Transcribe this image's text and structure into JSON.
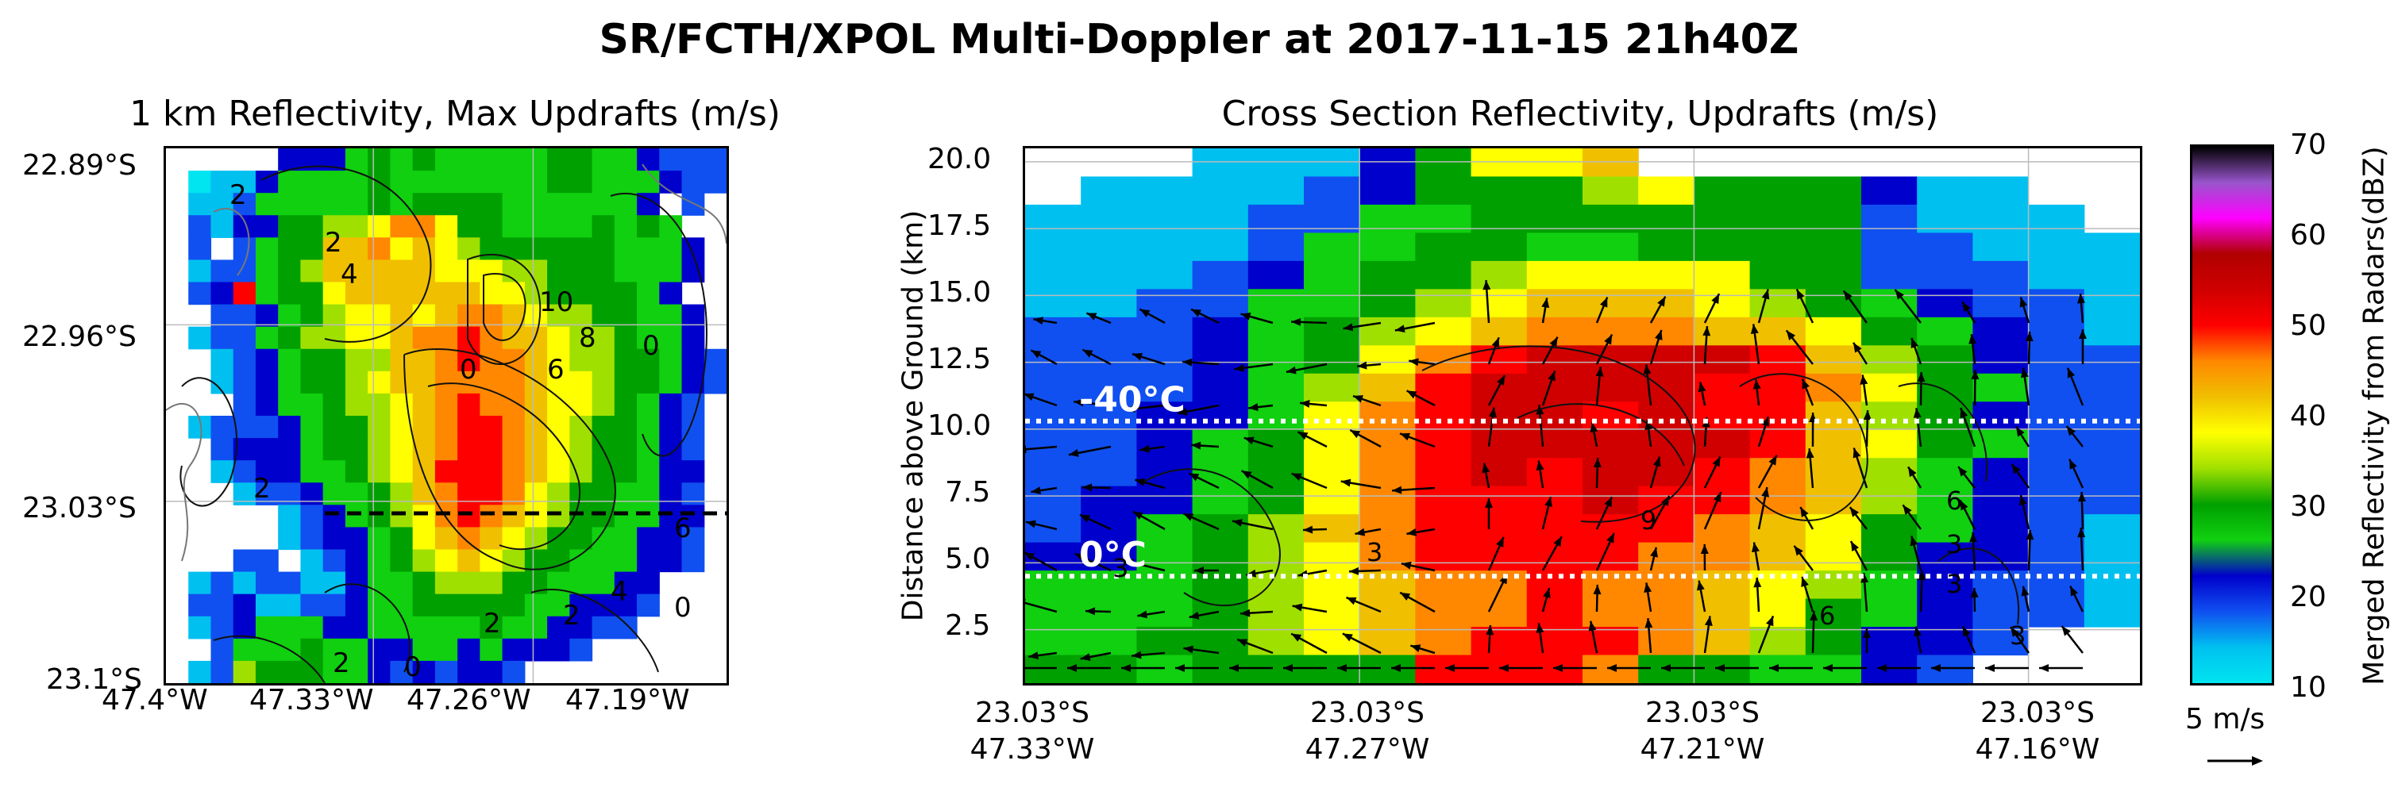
{
  "figure": {
    "suptitle": "SR/FCTH/XPOL Multi-Doppler at 2017-11-15 21h40Z"
  },
  "left_panel": {
    "title": "1 km Reflectivity, Max Updrafts (m/s)",
    "ytick_labels": [
      "22.89°S",
      "22.96°S",
      "23.03°S",
      "23.1°S"
    ],
    "xtick_labels": [
      "47.4°W",
      "47.33°W",
      "47.26°W",
      "47.19°W"
    ],
    "contour_labels": [
      "2",
      "4",
      "2",
      "0",
      "10",
      "6",
      "8",
      "0",
      "2",
      "6",
      "4",
      "2",
      "0",
      "2",
      "0",
      "2"
    ]
  },
  "right_panel": {
    "title": "Cross Section Reflectivity, Updrafts (m/s)",
    "ylabel": "Distance above Ground (km)",
    "ytick_labels": [
      "20.0",
      "17.5",
      "15.0",
      "12.5",
      "10.0",
      "7.5",
      "5.0",
      "2.5"
    ],
    "xtick_labels": [
      {
        "lat": "23.03°S",
        "lon": "47.33°W"
      },
      {
        "lat": "23.03°S",
        "lon": "47.27°W"
      },
      {
        "lat": "23.03°S",
        "lon": "47.21°W"
      },
      {
        "lat": "23.03°S",
        "lon": "47.16°W"
      }
    ],
    "isotherms": [
      {
        "label": "-40°C",
        "height_km": 10.3
      },
      {
        "label": "0°C",
        "height_km": 4.5
      }
    ],
    "contour_labels": [
      "3",
      "6",
      "3",
      "9",
      "3",
      "6",
      "3",
      "3"
    ]
  },
  "colorbar": {
    "label": "Merged Reflectivity from Radars(dBZ)",
    "tick_labels": [
      "70",
      "60",
      "50",
      "40",
      "30",
      "20",
      "10"
    ],
    "stops": [
      "#00e5f0",
      "#00c0f0",
      "#1050f0",
      "#0000cc",
      "#10d010",
      "#00a000",
      "#a0e000",
      "#ffff00",
      "#f0c000",
      "#ff8800",
      "#ff0000",
      "#d00000",
      "#b00000",
      "#ff00ff",
      "#9955cc",
      "#000000"
    ]
  },
  "quiver_key": {
    "label": "5 m/s"
  },
  "chart_data": [
    {
      "type": "heatmap",
      "title": "1 km Reflectivity, Max Updrafts (m/s)",
      "xlabel": "",
      "ylabel": "",
      "x_range": [
        "47.40°W",
        "47.15°W"
      ],
      "y_range": [
        "23.10°S",
        "22.87°S"
      ],
      "units": "dBZ",
      "vmin": 10,
      "vmax": 70,
      "grid_rows": 24,
      "grid_cols": 25,
      "values": [
        [
          0,
          0,
          0,
          0,
          0,
          22,
          20,
          22,
          25,
          30,
          25,
          28,
          26,
          25,
          24,
          24,
          25,
          28,
          28,
          24,
          24,
          20,
          18,
          18,
          18
        ],
        [
          0,
          10,
          14,
          12,
          20,
          24,
          24,
          25,
          25,
          30,
          26,
          26,
          26,
          27,
          26,
          24,
          26,
          28,
          28,
          26,
          26,
          24,
          20,
          19,
          19
        ],
        [
          0,
          14,
          12,
          18,
          24,
          24,
          24,
          26,
          26,
          30,
          26,
          28,
          28,
          28,
          28,
          26,
          26,
          26,
          26,
          24,
          24,
          22,
          0,
          16,
          0
        ],
        [
          0,
          16,
          14,
          20,
          20,
          28,
          30,
          34,
          32,
          36,
          44,
          44,
          38,
          30,
          28,
          26,
          26,
          26,
          26,
          28,
          24,
          28,
          26,
          0,
          0
        ],
        [
          0,
          18,
          0,
          16,
          26,
          28,
          30,
          40,
          42,
          44,
          38,
          40,
          36,
          32,
          30,
          28,
          30,
          28,
          28,
          28,
          26,
          24,
          24,
          20,
          0
        ],
        [
          0,
          14,
          18,
          16,
          26,
          28,
          32,
          40,
          40,
          40,
          42,
          42,
          38,
          38,
          36,
          34,
          32,
          30,
          28,
          28,
          26,
          26,
          26,
          22,
          0
        ],
        [
          0,
          16,
          20,
          48,
          26,
          28,
          30,
          36,
          40,
          40,
          42,
          42,
          40,
          40,
          38,
          36,
          34,
          30,
          30,
          30,
          28,
          26,
          22,
          0,
          0
        ],
        [
          0,
          0,
          16,
          18,
          22,
          26,
          30,
          34,
          38,
          36,
          40,
          38,
          40,
          46,
          44,
          40,
          38,
          34,
          32,
          30,
          28,
          26,
          24,
          20,
          0
        ],
        [
          0,
          12,
          16,
          18,
          24,
          28,
          32,
          34,
          36,
          38,
          42,
          44,
          46,
          48,
          44,
          40,
          42,
          36,
          34,
          32,
          30,
          26,
          24,
          20,
          0
        ],
        [
          0,
          0,
          14,
          16,
          22,
          24,
          28,
          30,
          32,
          34,
          40,
          42,
          46,
          48,
          46,
          44,
          40,
          38,
          34,
          32,
          30,
          28,
          26,
          20,
          16
        ],
        [
          0,
          0,
          12,
          18,
          20,
          26,
          28,
          30,
          32,
          36,
          40,
          42,
          44,
          46,
          46,
          46,
          40,
          38,
          36,
          32,
          30,
          28,
          24,
          20,
          16
        ],
        [
          0,
          0,
          0,
          16,
          20,
          24,
          26,
          30,
          32,
          34,
          38,
          40,
          44,
          48,
          46,
          44,
          42,
          38,
          36,
          32,
          28,
          26,
          22,
          18,
          0
        ],
        [
          0,
          14,
          16,
          16,
          18,
          22,
          26,
          28,
          30,
          34,
          38,
          42,
          46,
          50,
          48,
          44,
          40,
          38,
          34,
          30,
          28,
          26,
          22,
          18,
          0
        ],
        [
          0,
          0,
          18,
          22,
          20,
          22,
          24,
          28,
          30,
          34,
          38,
          42,
          46,
          50,
          48,
          44,
          40,
          36,
          32,
          30,
          28,
          26,
          22,
          18,
          0
        ],
        [
          0,
          0,
          14,
          18,
          20,
          22,
          24,
          26,
          30,
          34,
          36,
          42,
          48,
          50,
          48,
          44,
          40,
          36,
          32,
          30,
          28,
          24,
          22,
          20,
          0
        ],
        [
          0,
          0,
          0,
          14,
          16,
          18,
          22,
          24,
          26,
          30,
          34,
          40,
          46,
          50,
          48,
          44,
          38,
          34,
          30,
          28,
          26,
          24,
          22,
          18,
          0
        ],
        [
          0,
          0,
          0,
          0,
          0,
          14,
          18,
          22,
          24,
          28,
          32,
          38,
          44,
          48,
          44,
          40,
          36,
          32,
          30,
          28,
          26,
          24,
          22,
          20,
          0
        ],
        [
          0,
          0,
          0,
          0,
          0,
          14,
          16,
          20,
          22,
          26,
          30,
          36,
          40,
          44,
          40,
          36,
          32,
          30,
          28,
          26,
          24,
          22,
          20,
          18,
          0
        ],
        [
          0,
          0,
          0,
          16,
          16,
          0,
          12,
          18,
          22,
          24,
          28,
          32,
          36,
          40,
          38,
          34,
          30,
          28,
          26,
          24,
          24,
          22,
          20,
          18,
          0
        ],
        [
          0,
          14,
          16,
          14,
          18,
          18,
          14,
          14,
          20,
          24,
          26,
          30,
          32,
          34,
          34,
          30,
          28,
          26,
          24,
          24,
          22,
          20,
          0,
          0,
          0
        ],
        [
          0,
          16,
          18,
          20,
          14,
          14,
          16,
          16,
          22,
          24,
          24,
          28,
          30,
          30,
          30,
          28,
          26,
          24,
          22,
          20,
          20,
          18,
          0,
          0,
          0
        ],
        [
          0,
          14,
          16,
          22,
          24,
          26,
          24,
          22,
          20,
          24,
          24,
          24,
          26,
          26,
          28,
          26,
          24,
          22,
          20,
          18,
          18,
          0,
          0,
          0,
          0
        ],
        [
          0,
          0,
          18,
          26,
          24,
          26,
          28,
          24,
          24,
          22,
          20,
          24,
          24,
          20,
          24,
          22,
          20,
          20,
          18,
          0,
          0,
          0,
          0,
          0,
          0
        ],
        [
          0,
          14,
          16,
          34,
          28,
          28,
          30,
          26,
          24,
          20,
          18,
          20,
          18,
          20,
          20,
          18,
          0,
          0,
          0,
          0,
          0,
          0,
          0,
          0,
          0
        ]
      ]
    },
    {
      "type": "heatmap",
      "title": "Cross Section Reflectivity, Updrafts (m/s)",
      "xlabel": "",
      "ylabel": "Distance above Ground (km)",
      "x_ticks": [
        "23.03°S 47.33°W",
        "23.03°S 47.27°W",
        "23.03°S 47.21°W",
        "23.03°S 47.16°W"
      ],
      "ylim": [
        0.5,
        20.5
      ],
      "units": "dBZ",
      "vmin": 10,
      "vmax": 70,
      "grid_rows": 19,
      "grid_cols": 20,
      "values": [
        [
          0,
          0,
          0,
          12,
          12,
          15,
          20,
          30,
          36,
          38,
          40,
          0,
          0,
          0,
          0,
          0,
          0,
          0,
          0,
          0
        ],
        [
          0,
          12,
          12,
          12,
          14,
          18,
          20,
          28,
          30,
          30,
          32,
          36,
          30,
          28,
          28,
          20,
          12,
          12,
          0,
          0
        ],
        [
          12,
          12,
          12,
          14,
          16,
          18,
          24,
          26,
          28,
          28,
          30,
          30,
          30,
          28,
          28,
          18,
          14,
          14,
          12,
          0
        ],
        [
          12,
          14,
          12,
          14,
          16,
          24,
          26,
          28,
          30,
          26,
          26,
          28,
          28,
          28,
          30,
          18,
          16,
          14,
          14,
          12
        ],
        [
          14,
          14,
          14,
          16,
          22,
          24,
          28,
          30,
          34,
          36,
          38,
          38,
          36,
          30,
          28,
          18,
          18,
          16,
          14,
          14
        ],
        [
          14,
          14,
          16,
          18,
          24,
          26,
          30,
          34,
          38,
          42,
          42,
          40,
          38,
          34,
          30,
          26,
          22,
          18,
          16,
          14
        ],
        [
          16,
          16,
          18,
          22,
          24,
          28,
          34,
          38,
          40,
          44,
          44,
          44,
          42,
          40,
          38,
          30,
          24,
          20,
          16,
          14
        ],
        [
          16,
          16,
          18,
          22,
          26,
          30,
          38,
          46,
          50,
          52,
          52,
          52,
          52,
          50,
          40,
          34,
          28,
          22,
          18,
          16
        ],
        [
          16,
          16,
          18,
          22,
          26,
          34,
          42,
          50,
          52,
          52,
          52,
          52,
          50,
          50,
          44,
          36,
          30,
          24,
          18,
          16
        ],
        [
          16,
          16,
          20,
          22,
          26,
          36,
          44,
          50,
          52,
          52,
          50,
          52,
          50,
          48,
          42,
          34,
          28,
          22,
          18,
          16
        ],
        [
          16,
          18,
          20,
          24,
          28,
          36,
          46,
          50,
          52,
          52,
          52,
          52,
          52,
          48,
          42,
          36,
          28,
          24,
          18,
          16
        ],
        [
          18,
          18,
          20,
          26,
          30,
          38,
          46,
          50,
          52,
          50,
          52,
          52,
          50,
          46,
          40,
          34,
          26,
          22,
          18,
          16
        ],
        [
          18,
          20,
          22,
          26,
          30,
          38,
          46,
          50,
          50,
          50,
          52,
          50,
          48,
          44,
          40,
          32,
          26,
          22,
          18,
          16
        ],
        [
          18,
          20,
          24,
          28,
          32,
          40,
          46,
          48,
          50,
          50,
          50,
          48,
          46,
          42,
          38,
          30,
          24,
          20,
          16,
          14
        ],
        [
          20,
          22,
          24,
          28,
          32,
          38,
          44,
          48,
          48,
          48,
          48,
          46,
          44,
          40,
          36,
          28,
          22,
          20,
          16,
          14
        ],
        [
          24,
          24,
          26,
          28,
          34,
          38,
          42,
          46,
          46,
          48,
          46,
          44,
          42,
          38,
          34,
          26,
          22,
          18,
          16,
          14
        ],
        [
          26,
          26,
          26,
          28,
          34,
          38,
          42,
          46,
          46,
          48,
          46,
          44,
          40,
          36,
          30,
          24,
          20,
          18,
          16,
          12
        ],
        [
          26,
          26,
          28,
          28,
          32,
          38,
          42,
          46,
          48,
          48,
          48,
          44,
          40,
          34,
          28,
          22,
          20,
          18,
          0,
          0
        ],
        [
          28,
          28,
          26,
          28,
          28,
          30,
          30,
          48,
          48,
          48,
          46,
          28,
          28,
          26,
          24,
          20,
          18,
          0,
          0,
          0
        ]
      ],
      "isotherms_km": {
        "-40°C": 10.3,
        "0°C": 4.5
      }
    }
  ]
}
